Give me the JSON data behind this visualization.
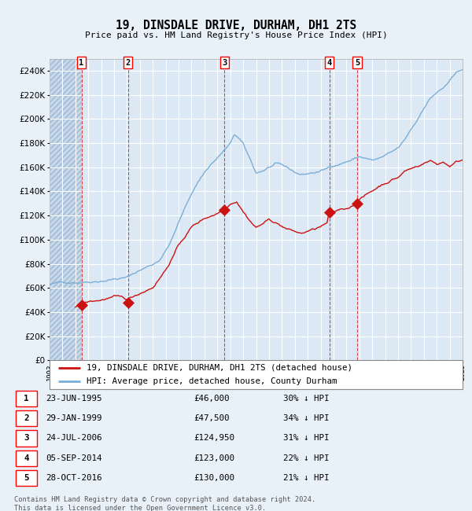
{
  "title": "19, DINSDALE DRIVE, DURHAM, DH1 2TS",
  "subtitle": "Price paid vs. HM Land Registry's House Price Index (HPI)",
  "background_color": "#e8f0f8",
  "plot_bg_color": "#dce9f5",
  "grid_color": "#ffffff",
  "hpi_color": "#7aaed6",
  "price_color": "#cc1111",
  "ylim": [
    0,
    250000
  ],
  "yticks": [
    0,
    20000,
    40000,
    60000,
    80000,
    100000,
    120000,
    140000,
    160000,
    180000,
    200000,
    220000,
    240000
  ],
  "legend_line1": "19, DINSDALE DRIVE, DURHAM, DH1 2TS (detached house)",
  "legend_line2": "HPI: Average price, detached house, County Durham",
  "x_start_year": 1993,
  "x_end_year": 2025,
  "hpi_key_x": [
    1993.0,
    1994.0,
    1995.0,
    1996.0,
    1997.0,
    1998.0,
    1999.0,
    2000.0,
    2001.0,
    2001.5,
    2002.0,
    2002.5,
    2003.0,
    2003.5,
    2004.0,
    2004.5,
    2005.0,
    2005.5,
    2006.0,
    2006.5,
    2007.0,
    2007.3,
    2007.7,
    2008.0,
    2008.5,
    2009.0,
    2009.5,
    2010.0,
    2010.5,
    2011.0,
    2011.5,
    2012.0,
    2012.5,
    2013.0,
    2013.5,
    2014.0,
    2014.5,
    2015.0,
    2015.5,
    2016.0,
    2016.5,
    2017.0,
    2017.5,
    2018.0,
    2018.5,
    2019.0,
    2019.5,
    2020.0,
    2020.5,
    2021.0,
    2021.5,
    2022.0,
    2022.5,
    2023.0,
    2023.5,
    2024.0,
    2024.5,
    2025.0
  ],
  "hpi_key_y": [
    63000,
    64000,
    65500,
    67000,
    69000,
    71000,
    72000,
    78000,
    83000,
    87000,
    95000,
    105000,
    118000,
    130000,
    142000,
    152000,
    160000,
    167000,
    172000,
    178000,
    183000,
    191000,
    187000,
    182000,
    170000,
    158000,
    160000,
    163000,
    165000,
    163000,
    160000,
    157000,
    155000,
    156000,
    157000,
    158000,
    160000,
    163000,
    165000,
    167000,
    169000,
    171000,
    170000,
    168000,
    169000,
    171000,
    173000,
    176000,
    182000,
    191000,
    199000,
    210000,
    218000,
    223000,
    226000,
    232000,
    237000,
    241000
  ],
  "price_key_x": [
    1995.0,
    1995.3,
    1995.47,
    1996.0,
    1997.0,
    1997.5,
    1998.0,
    1998.5,
    1999.08,
    2000.0,
    2001.0,
    2002.0,
    2003.0,
    2004.0,
    2005.0,
    2006.0,
    2006.3,
    2006.56,
    2007.0,
    2007.5,
    2008.0,
    2008.5,
    2009.0,
    2009.5,
    2010.0,
    2010.5,
    2011.0,
    2011.5,
    2012.0,
    2012.5,
    2013.0,
    2013.5,
    2014.0,
    2014.5,
    2014.67,
    2015.0,
    2015.5,
    2016.0,
    2016.5,
    2016.83,
    2017.0,
    2017.5,
    2018.0,
    2018.5,
    2019.0,
    2019.5,
    2020.0,
    2020.5,
    2021.0,
    2021.5,
    2022.0,
    2022.5,
    2023.0,
    2023.5,
    2024.0,
    2024.5,
    2025.0
  ],
  "price_key_y": [
    44000,
    45500,
    46000,
    47500,
    49000,
    50500,
    51000,
    49500,
    47500,
    53000,
    59000,
    74000,
    94000,
    109000,
    116000,
    121000,
    123000,
    124950,
    130000,
    133000,
    125000,
    118000,
    112000,
    115000,
    118000,
    116000,
    113000,
    110000,
    108000,
    106000,
    108000,
    109000,
    111000,
    113000,
    123000,
    121000,
    123000,
    124000,
    127000,
    130000,
    133000,
    136000,
    139000,
    143000,
    146000,
    149000,
    151000,
    156000,
    158000,
    160000,
    163000,
    165000,
    162000,
    164000,
    161000,
    164000,
    166000
  ],
  "purchases": [
    {
      "label": "1",
      "year": 1995.47,
      "price": 46000
    },
    {
      "label": "2",
      "year": 1999.08,
      "price": 47500
    },
    {
      "label": "3",
      "year": 2006.56,
      "price": 124950
    },
    {
      "label": "4",
      "year": 2014.67,
      "price": 123000
    },
    {
      "label": "5",
      "year": 2016.83,
      "price": 130000
    }
  ],
  "table_rows": [
    {
      "label": "1",
      "date": "23-JUN-1995",
      "price": "£46,000",
      "pct": "30% ↓ HPI"
    },
    {
      "label": "2",
      "date": "29-JAN-1999",
      "price": "£47,500",
      "pct": "34% ↓ HPI"
    },
    {
      "label": "3",
      "date": "24-JUL-2006",
      "price": "£124,950",
      "pct": "31% ↓ HPI"
    },
    {
      "label": "4",
      "date": "05-SEP-2014",
      "price": "£123,000",
      "pct": "22% ↓ HPI"
    },
    {
      "label": "5",
      "date": "28-OCT-2016",
      "price": "£130,000",
      "pct": "21% ↓ HPI"
    }
  ],
  "footer1": "Contains HM Land Registry data © Crown copyright and database right 2024.",
  "footer2": "This data is licensed under the Open Government Licence v3.0."
}
